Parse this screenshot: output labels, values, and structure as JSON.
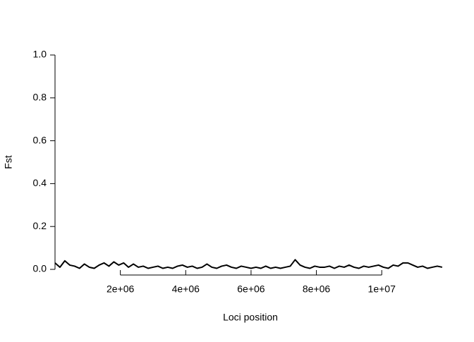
{
  "chart_data": {
    "type": "line",
    "x_label": "Loci position",
    "y_label": "Fst",
    "x": [
      0,
      150000,
      300000,
      450000,
      600000,
      750000,
      900000,
      1050000,
      1200000,
      1350000,
      1500000,
      1650000,
      1800000,
      1950000,
      2100000,
      2250000,
      2400000,
      2550000,
      2700000,
      2850000,
      3000000,
      3150000,
      3300000,
      3450000,
      3600000,
      3750000,
      3900000,
      4050000,
      4200000,
      4350000,
      4500000,
      4650000,
      4800000,
      4950000,
      5100000,
      5250000,
      5400000,
      5550000,
      5700000,
      5850000,
      6000000,
      6150000,
      6300000,
      6450000,
      6600000,
      6750000,
      6900000,
      7050000,
      7200000,
      7350000,
      7500000,
      7650000,
      7800000,
      7950000,
      8100000,
      8250000,
      8400000,
      8550000,
      8700000,
      8850000,
      9000000,
      9150000,
      9300000,
      9450000,
      9600000,
      9750000,
      9900000,
      10050000,
      10200000,
      10350000,
      10500000,
      10650000,
      10800000,
      10950000,
      11100000,
      11250000,
      11400000,
      11550000,
      11700000,
      11850000
    ],
    "series": [
      {
        "name": "Fst",
        "color": "#000000",
        "values": [
          0.03,
          0.01,
          0.04,
          0.02,
          0.015,
          0.005,
          0.025,
          0.01,
          0.005,
          0.02,
          0.03,
          0.015,
          0.035,
          0.02,
          0.03,
          0.01,
          0.025,
          0.01,
          0.015,
          0.005,
          0.01,
          0.015,
          0.005,
          0.01,
          0.005,
          0.015,
          0.02,
          0.01,
          0.015,
          0.005,
          0.01,
          0.025,
          0.01,
          0.005,
          0.015,
          0.02,
          0.01,
          0.005,
          0.015,
          0.01,
          0.005,
          0.01,
          0.005,
          0.015,
          0.005,
          0.01,
          0.005,
          0.01,
          0.015,
          0.045,
          0.02,
          0.01,
          0.005,
          0.015,
          0.01,
          0.01,
          0.015,
          0.005,
          0.015,
          0.01,
          0.02,
          0.01,
          0.005,
          0.015,
          0.01,
          0.015,
          0.02,
          0.01,
          0.005,
          0.02,
          0.015,
          0.03,
          0.03,
          0.02,
          0.01,
          0.015,
          0.005,
          0.01,
          0.015,
          0.01
        ]
      }
    ],
    "xlim": [
      0,
      11960000
    ],
    "ylim": [
      0,
      1
    ],
    "xticks": [
      {
        "value": 2000000,
        "label": "2e+06"
      },
      {
        "value": 4000000,
        "label": "4e+06"
      },
      {
        "value": 6000000,
        "label": "6e+06"
      },
      {
        "value": 8000000,
        "label": "8e+06"
      },
      {
        "value": 10000000,
        "label": "1e+07"
      }
    ],
    "yticks": [
      {
        "value": 0,
        "label": "0.0"
      },
      0.2,
      0.4,
      0.6,
      0.8,
      {
        "value": 1,
        "label": "1.0"
      }
    ]
  }
}
